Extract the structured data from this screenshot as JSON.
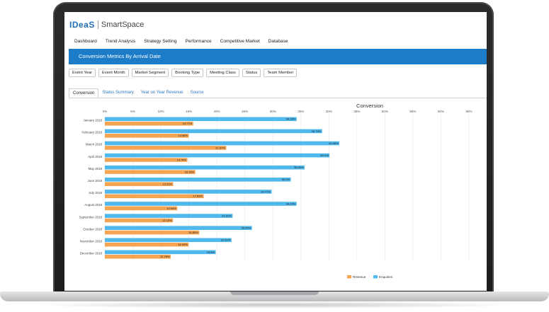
{
  "app": {
    "logo": "IDeaS",
    "product": "SmartSpace"
  },
  "nav": {
    "items": [
      "Dashboard",
      "Trend Analysis",
      "Strategy Setting",
      "Performance",
      "Competitive Market",
      "Database"
    ]
  },
  "page": {
    "title": "Conversion Metrics By Arrival Date"
  },
  "filters": {
    "items": [
      "Event Year",
      "Event Month",
      "Market Segment",
      "Booking Type",
      "Meeting Class",
      "Status",
      "Team Member"
    ]
  },
  "tabs": {
    "items": [
      "Conversion",
      "Status Summary",
      "Year on Year Revenue",
      "Source"
    ],
    "active": "Conversion"
  },
  "colors": {
    "revenue": "#f5a451",
    "enquiries": "#4fb8ec",
    "header_blue": "#1d7cc8"
  },
  "chart_data": {
    "type": "bar",
    "orientation": "horizontal",
    "title": "Conversion",
    "xlim": [
      0,
      65
    ],
    "xticks": [
      "0%",
      "5%",
      "10%",
      "15%",
      "20%",
      "25%",
      "30%",
      "35%",
      "40%",
      "45%",
      "50%",
      "55%",
      "60%",
      "65%"
    ],
    "grid": true,
    "legend_position": "bottom-right",
    "categories": [
      "January 2018",
      "February 2018",
      "March 2018",
      "April 2018",
      "May 2018",
      "June 2018",
      "July 2018",
      "August 2018",
      "September 2018",
      "October 2018",
      "November 2018",
      "December 2018"
    ],
    "series": [
      {
        "name": "Revenue",
        "values": [
          15.77,
          14.98,
          21.67,
          14.74,
          16.15,
          12.21,
          17.65,
          12.94,
          12.15,
          16.85,
          14.94,
          11.76
        ],
        "labels": [
          "15.77%",
          "14.98%",
          "21.67%",
          "14.74%",
          "16.15%",
          "12.21%",
          "17.65%",
          "12.94%",
          "12.15%",
          "16.85%",
          "14.94%",
          "11.76%"
        ]
      },
      {
        "name": "Enquiries",
        "values": [
          34.24,
          38.79,
          41.86,
          40.1,
          35.65,
          33.2,
          29.77,
          34.23,
          22.81,
          26.26,
          22.61,
          19.8
        ],
        "labels": [
          "34.24%",
          "38.79%",
          "41.86%",
          "40.1%",
          "35.65%",
          "33.2%",
          "29.77%",
          "34.23%",
          "22.81%",
          "26.26%",
          "22.61%",
          "19.8%"
        ]
      }
    ]
  }
}
